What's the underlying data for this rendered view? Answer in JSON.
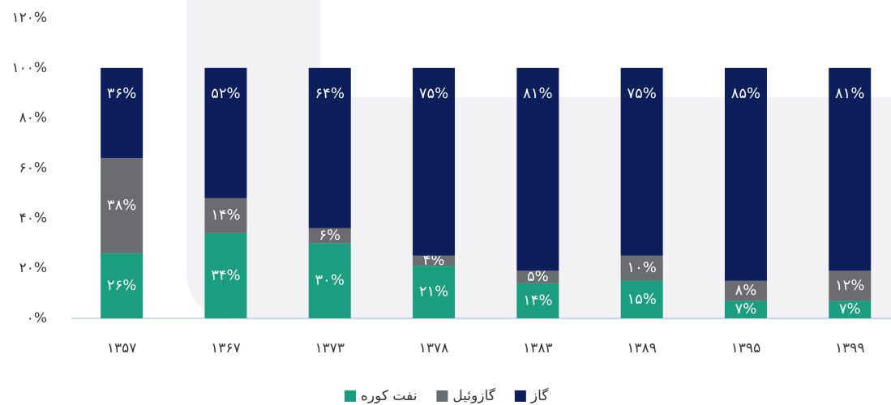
{
  "chart_data": {
    "type": "stacked_bar",
    "categories": [
      "۱۳۵۷",
      "۱۳۶۷",
      "۱۳۷۳",
      "۱۳۷۸",
      "۱۳۸۳",
      "۱۳۸۹",
      "۱۳۹۵",
      "۱۳۹۹"
    ],
    "series": [
      {
        "name": "نفت کوره",
        "color": "#1b9e7f",
        "values": [
          26,
          34,
          30,
          21,
          14,
          15,
          7,
          7
        ],
        "value_labels": [
          "۲۶%",
          "۳۴%",
          "۳۰%",
          "۲۱%",
          "۱۴%",
          "۱۵%",
          "۷%",
          "۷%"
        ]
      },
      {
        "name": "گازوئیل",
        "color": "#6b6c70",
        "values": [
          38,
          14,
          6,
          4,
          5,
          10,
          8,
          12
        ],
        "value_labels": [
          "۳۸%",
          "۱۴%",
          "۶%",
          "۴%",
          "۵%",
          "۱۰%",
          "۸%",
          "۱۲%"
        ]
      },
      {
        "name": "گاز",
        "color": "#0c1f5c",
        "values": [
          36,
          52,
          64,
          75,
          81,
          75,
          85,
          81
        ],
        "value_labels": [
          "۳۶%",
          "۵۲%",
          "۶۴%",
          "۷۵%",
          "۸۱%",
          "۷۵%",
          "۸۵%",
          "۸۱%"
        ]
      }
    ],
    "ylim": [
      0,
      120
    ],
    "yticks": [
      {
        "value": 0,
        "label": "۰%"
      },
      {
        "value": 20,
        "label": "۲۰%"
      },
      {
        "value": 40,
        "label": "۴۰%"
      },
      {
        "value": 60,
        "label": "۶۰%"
      },
      {
        "value": 80,
        "label": "۸۰%"
      },
      {
        "value": 100,
        "label": "۱۰۰%"
      },
      {
        "value": 120,
        "label": "۱۲۰%"
      }
    ],
    "legend": "bottom"
  }
}
